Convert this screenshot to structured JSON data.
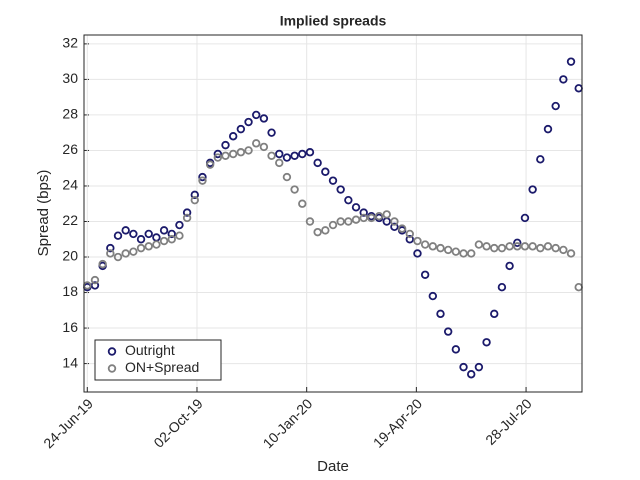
{
  "chart_data": {
    "type": "scatter",
    "title": "Implied spreads",
    "x_label": "Date",
    "y_label": "Spread (bps)",
    "x": [
      "2019-06-24",
      "2019-07-01",
      "2019-07-08",
      "2019-07-15",
      "2019-07-22",
      "2019-07-29",
      "2019-08-05",
      "2019-08-12",
      "2019-08-19",
      "2019-08-26",
      "2019-09-02",
      "2019-09-09",
      "2019-09-16",
      "2019-09-23",
      "2019-09-30",
      "2019-10-07",
      "2019-10-14",
      "2019-10-21",
      "2019-10-28",
      "2019-11-04",
      "2019-11-11",
      "2019-11-18",
      "2019-11-25",
      "2019-12-02",
      "2019-12-09",
      "2019-12-16",
      "2019-12-23",
      "2019-12-30",
      "2020-01-06",
      "2020-01-13",
      "2020-01-20",
      "2020-01-27",
      "2020-02-03",
      "2020-02-10",
      "2020-02-17",
      "2020-02-24",
      "2020-03-02",
      "2020-03-09",
      "2020-03-16",
      "2020-03-23",
      "2020-03-30",
      "2020-04-06",
      "2020-04-13",
      "2020-04-20",
      "2020-04-27",
      "2020-05-04",
      "2020-05-11",
      "2020-05-18",
      "2020-05-25",
      "2020-06-01",
      "2020-06-08",
      "2020-06-15",
      "2020-06-22",
      "2020-06-29",
      "2020-07-06",
      "2020-07-13",
      "2020-07-20",
      "2020-07-27",
      "2020-08-03",
      "2020-08-10",
      "2020-08-17",
      "2020-08-24",
      "2020-08-31",
      "2020-09-07",
      "2020-09-14"
    ],
    "series": [
      {
        "name": "Outright",
        "color": "#1b1a6b",
        "values": [
          18.3,
          18.4,
          19.5,
          20.5,
          21.2,
          21.5,
          21.3,
          21.0,
          21.3,
          21.1,
          21.5,
          21.3,
          21.8,
          22.5,
          23.5,
          24.5,
          25.3,
          25.8,
          26.3,
          26.8,
          27.2,
          27.6,
          28.0,
          27.8,
          27.0,
          25.8,
          25.6,
          25.7,
          25.8,
          25.9,
          25.3,
          24.8,
          24.3,
          23.8,
          23.2,
          22.8,
          22.5,
          22.3,
          22.2,
          22.0,
          21.7,
          21.5,
          21.0,
          20.2,
          19.0,
          17.8,
          16.8,
          15.8,
          14.8,
          13.8,
          13.4,
          13.8,
          15.2,
          16.8,
          18.3,
          19.5,
          20.8,
          22.2,
          23.8,
          25.5,
          27.2,
          28.5,
          30.0,
          31.0,
          29.5
        ]
      },
      {
        "name": "ON+Spread",
        "color": "#808080",
        "values": [
          18.4,
          18.7,
          19.6,
          20.2,
          20.0,
          20.2,
          20.3,
          20.5,
          20.6,
          20.7,
          20.9,
          21.0,
          21.2,
          22.2,
          23.2,
          24.3,
          25.2,
          25.6,
          25.7,
          25.8,
          25.9,
          26.0,
          26.4,
          26.2,
          25.7,
          25.3,
          24.5,
          23.8,
          23.0,
          22.0,
          21.4,
          21.5,
          21.8,
          22.0,
          22.0,
          22.1,
          22.2,
          22.2,
          22.3,
          22.4,
          22.0,
          21.6,
          21.3,
          20.9,
          20.7,
          20.6,
          20.5,
          20.4,
          20.3,
          20.2,
          20.2,
          20.7,
          20.6,
          20.5,
          20.5,
          20.6,
          20.6,
          20.6,
          20.6,
          20.5,
          20.6,
          20.5,
          20.4,
          20.2,
          18.3
        ]
      }
    ],
    "xlim": [
      "2019-06-21",
      "2020-09-17"
    ],
    "xticks": [
      {
        "value": "2019-06-24",
        "label": "24-Jun-19"
      },
      {
        "value": "2019-10-02",
        "label": "02-Oct-19"
      },
      {
        "value": "2020-01-10",
        "label": "10-Jan-20"
      },
      {
        "value": "2020-04-19",
        "label": "19-Apr-20"
      },
      {
        "value": "2020-07-28",
        "label": "28-Jul-20"
      }
    ],
    "ylim": [
      12.4,
      32.5
    ],
    "yticks": [
      14,
      16,
      18,
      20,
      22,
      24,
      26,
      28,
      30,
      32
    ],
    "grid": true,
    "legend": "southwest"
  }
}
